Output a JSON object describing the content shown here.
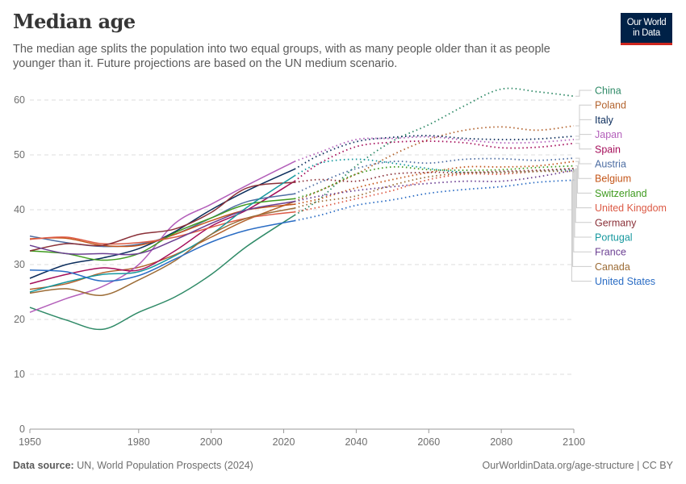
{
  "header": {
    "title": "Median age",
    "subtitle": "The median age splits the population into two equal groups, with as many people older than it as people younger than it. Future projections are based on the UN medium scenario.",
    "logo_line1": "Our World",
    "logo_line2": "in Data"
  },
  "footer": {
    "source_label": "Data source:",
    "source_text": "UN, World Population Prospects (2024)",
    "url": "OurWorldinData.org/age-structure | CC BY"
  },
  "chart_data": {
    "type": "line",
    "title": "Median age",
    "xlim": [
      1950,
      2100
    ],
    "ylim": [
      0,
      60
    ],
    "x_ticks": [
      "1950",
      "1980",
      "2000",
      "2020",
      "2040",
      "2060",
      "2080",
      "2100"
    ],
    "y_ticks": [
      "0",
      "10",
      "20",
      "30",
      "40",
      "50",
      "60"
    ],
    "grid": "horizontal dashed",
    "legend": "right, labels at line ends",
    "projection_style": "dotted after 2023",
    "historical_years": [
      1950,
      1960,
      1970,
      1980,
      1990,
      2000,
      2010,
      2023
    ],
    "projection_years": [
      2023,
      2030,
      2040,
      2050,
      2060,
      2070,
      2080,
      2090,
      2100
    ],
    "series": [
      {
        "name": "China",
        "color": "#2f8a67",
        "historical": [
          22.2,
          19.9,
          18.2,
          21.3,
          24.1,
          28.2,
          33.4,
          39.0
        ],
        "projection": [
          39.0,
          42,
          48,
          52.5,
          55.5,
          59,
          62,
          61.5,
          60.7
        ]
      },
      {
        "name": "Poland",
        "color": "#b3632e",
        "historical": [
          25.5,
          26.5,
          28.5,
          29.5,
          31.8,
          35,
          38.2,
          41.5
        ],
        "projection": [
          41.5,
          43.5,
          46.5,
          50,
          52.8,
          54.5,
          55.1,
          54.5,
          55.3
        ]
      },
      {
        "name": "Italy",
        "color": "#0b2d5c",
        "historical": [
          27.5,
          30,
          31.2,
          32.9,
          36,
          40,
          43.5,
          47.4
        ],
        "projection": [
          47.4,
          50,
          52.4,
          53.2,
          53.5,
          53,
          52.8,
          52.9,
          53.4
        ]
      },
      {
        "name": "Japan",
        "color": "#b35fba",
        "historical": [
          21.3,
          23.8,
          26,
          30,
          37.5,
          41,
          44.5,
          48.8
        ],
        "projection": [
          48.8,
          50.5,
          52.8,
          53,
          53.3,
          52.7,
          52.2,
          52.3,
          52.8
        ]
      },
      {
        "name": "Spain",
        "color": "#a50e5a",
        "historical": [
          26.5,
          28.2,
          29.4,
          29,
          32.5,
          37,
          40,
          45.2
        ],
        "projection": [
          45.2,
          48.5,
          51.5,
          52.3,
          52.5,
          52.2,
          51.3,
          51.4,
          52.1
        ]
      },
      {
        "name": "Austria",
        "color": "#4e6ea3",
        "historical": [
          35.2,
          34,
          33.3,
          33.7,
          35.5,
          38.5,
          41.5,
          42.9
        ],
        "projection": [
          42.9,
          45,
          47.5,
          48.8,
          48.5,
          49.2,
          49.3,
          49,
          49.4
        ]
      },
      {
        "name": "Belgium",
        "color": "#c4561a",
        "historical": [
          34.7,
          34.8,
          33.5,
          33.5,
          35.5,
          38,
          40,
          41
        ],
        "projection": [
          41,
          42,
          44,
          45.5,
          46.8,
          47.8,
          47.8,
          48,
          48.8
        ]
      },
      {
        "name": "Switzerland",
        "color": "#3f9b1f",
        "historical": [
          32.5,
          32,
          30.8,
          32,
          35.8,
          38.5,
          41,
          42
        ],
        "projection": [
          42,
          43.5,
          46.5,
          47.8,
          47.3,
          47.2,
          47.3,
          47.7,
          48
        ]
      },
      {
        "name": "United Kingdom",
        "color": "#dc5a45",
        "historical": [
          34.6,
          35,
          33.8,
          34,
          35,
          36.8,
          38.5,
          39.6
        ],
        "projection": [
          39.6,
          40.5,
          42,
          43.5,
          45.5,
          46.5,
          46.5,
          47,
          47.5
        ]
      },
      {
        "name": "Germany",
        "color": "#8a3038",
        "historical": [
          32.5,
          33.8,
          33.5,
          35.5,
          36.5,
          39.5,
          44,
          45
        ],
        "projection": [
          45,
          45.5,
          45.2,
          46.5,
          46.8,
          46.8,
          47,
          47.2,
          47.5
        ]
      },
      {
        "name": "Portugal",
        "color": "#16989e",
        "historical": [
          25,
          26.8,
          28.2,
          28.7,
          31.6,
          35.5,
          40.5,
          46.2
        ],
        "projection": [
          46.2,
          48.5,
          49.2,
          48.5,
          47.5,
          46.8,
          46.8,
          47,
          47.3
        ]
      },
      {
        "name": "France",
        "color": "#6b3f92",
        "historical": [
          33.5,
          32,
          32,
          32,
          34.5,
          37.5,
          40,
          41.5
        ],
        "projection": [
          41.5,
          42.5,
          43.5,
          44.2,
          44.8,
          45.2,
          45.2,
          46,
          47.2
        ]
      },
      {
        "name": "Canada",
        "color": "#9c6c36",
        "historical": [
          24.8,
          25.6,
          24.4,
          27.2,
          30.7,
          35.5,
          38.5,
          40.3
        ],
        "projection": [
          40.3,
          41.5,
          42.5,
          44.5,
          46,
          46.7,
          46.8,
          47,
          47
        ]
      },
      {
        "name": "United States",
        "color": "#2a6cc4",
        "historical": [
          29,
          28.7,
          27,
          28,
          31,
          34.1,
          36.3,
          38
        ],
        "projection": [
          38,
          39,
          40.8,
          41.8,
          43,
          43.7,
          44.2,
          45,
          45.4
        ]
      }
    ]
  }
}
